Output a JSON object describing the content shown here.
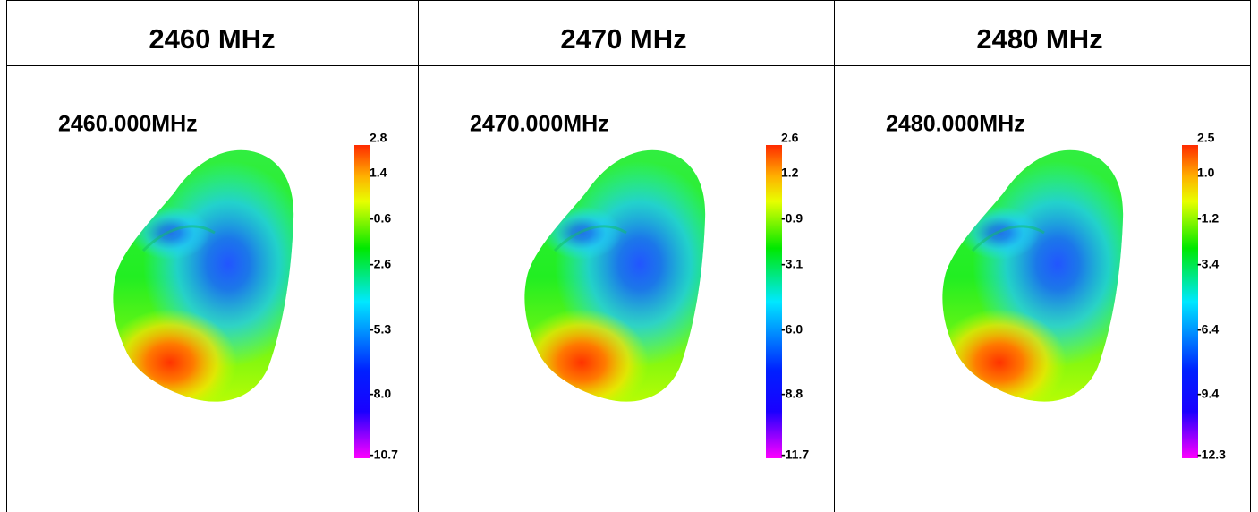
{
  "table": {
    "headers": [
      "2460 MHz",
      "2470 MHz",
      "2480 MHz"
    ],
    "cells": [
      {
        "label": "2460.000MHz",
        "scale": [
          "2.8",
          "1.4",
          "-0.6",
          "-2.6",
          "-5.3",
          "-8.0",
          "-10.7"
        ]
      },
      {
        "label": "2470.000MHz",
        "scale": [
          "2.6",
          "1.2",
          "-0.9",
          "-3.1",
          "-6.0",
          "-8.8",
          "-11.7"
        ]
      },
      {
        "label": "2480.000MHz",
        "scale": [
          "2.5",
          "1.0",
          "-1.2",
          "-3.4",
          "-6.4",
          "-9.4",
          "-12.3"
        ]
      }
    ]
  }
}
